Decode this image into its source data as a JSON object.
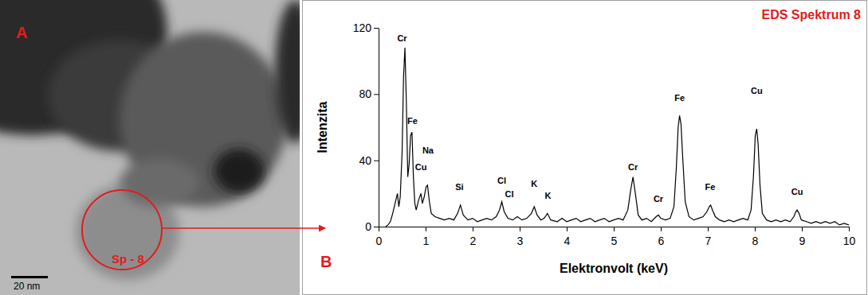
{
  "image": {
    "panel": "A",
    "region": "Sp - 8",
    "scale_bar": "20 nm"
  },
  "chart_data": {
    "type": "line",
    "title": "EDS Spektrum 8",
    "panel": "B",
    "x_label": "Elektronvolt (keV)",
    "y_label": "Intenzita",
    "xlim": [
      0,
      10
    ],
    "xticks": [
      0,
      1,
      2,
      3,
      4,
      5,
      6,
      7,
      8,
      9,
      10
    ],
    "ylim": [
      0,
      120
    ],
    "yticks": [
      0,
      40,
      80,
      120
    ],
    "color": "#000000",
    "x": [
      0.15,
      0.2,
      0.25,
      0.3,
      0.35,
      0.4,
      0.43,
      0.46,
      0.5,
      0.53,
      0.56,
      0.59,
      0.62,
      0.65,
      0.68,
      0.71,
      0.74,
      0.77,
      0.8,
      0.85,
      0.9,
      0.93,
      0.97,
      1.01,
      1.04,
      1.08,
      1.12,
      1.2,
      1.3,
      1.4,
      1.5,
      1.6,
      1.68,
      1.74,
      1.8,
      1.9,
      2.0,
      2.1,
      2.2,
      2.3,
      2.4,
      2.5,
      2.57,
      2.62,
      2.67,
      2.75,
      2.85,
      2.95,
      3.05,
      3.15,
      3.25,
      3.31,
      3.37,
      3.45,
      3.52,
      3.59,
      3.66,
      3.8,
      3.9,
      4.0,
      4.1,
      4.2,
      4.3,
      4.4,
      4.5,
      4.6,
      4.7,
      4.8,
      4.9,
      5.0,
      5.1,
      5.2,
      5.3,
      5.36,
      5.41,
      5.46,
      5.52,
      5.6,
      5.7,
      5.8,
      5.9,
      5.95,
      6.0,
      6.1,
      6.2,
      6.28,
      6.33,
      6.37,
      6.4,
      6.43,
      6.47,
      6.52,
      6.6,
      6.7,
      6.8,
      6.9,
      6.98,
      7.03,
      7.06,
      7.1,
      7.16,
      7.25,
      7.35,
      7.45,
      7.55,
      7.65,
      7.75,
      7.85,
      7.92,
      7.97,
      8.01,
      8.04,
      8.07,
      8.11,
      8.16,
      8.25,
      8.35,
      8.45,
      8.55,
      8.65,
      8.75,
      8.83,
      8.87,
      8.9,
      8.94,
      8.99,
      9.1,
      9.2,
      9.3,
      9.4,
      9.5,
      9.6,
      9.7,
      9.8,
      9.9,
      10.0
    ],
    "values": [
      0,
      1,
      3,
      8,
      14,
      20,
      12,
      18,
      45,
      90,
      108,
      75,
      30,
      38,
      55,
      57,
      30,
      14,
      10,
      16,
      20,
      14,
      18,
      24,
      25,
      15,
      8,
      6,
      5,
      4,
      5,
      4,
      8,
      13,
      7,
      4,
      5,
      3,
      4,
      5,
      4,
      6,
      10,
      15,
      9,
      5,
      4,
      6,
      4,
      5,
      8,
      12,
      7,
      4,
      5,
      8,
      4,
      3,
      5,
      3,
      4,
      5,
      3,
      4,
      5,
      3,
      4,
      5,
      3,
      4,
      5,
      4,
      10,
      22,
      30,
      20,
      7,
      4,
      5,
      3,
      6,
      7,
      5,
      4,
      5,
      12,
      35,
      60,
      67,
      62,
      40,
      15,
      6,
      4,
      5,
      6,
      9,
      12,
      13,
      10,
      6,
      4,
      3,
      4,
      3,
      4,
      5,
      4,
      10,
      30,
      55,
      59,
      50,
      25,
      8,
      4,
      3,
      4,
      3,
      4,
      3,
      6,
      9,
      10,
      8,
      4,
      3,
      2,
      3,
      2,
      3,
      2,
      3,
      1,
      2,
      1
    ],
    "annotations": [
      {
        "text": "Cr",
        "x": 0.5,
        "y": 112
      },
      {
        "text": "Fe",
        "x": 0.72,
        "y": 62
      },
      {
        "text": "Na",
        "x": 1.05,
        "y": 44
      },
      {
        "text": "Cu",
        "x": 0.9,
        "y": 34
      },
      {
        "text": "Si",
        "x": 1.72,
        "y": 22
      },
      {
        "text": "Cl",
        "x": 2.62,
        "y": 26
      },
      {
        "text": "Cl",
        "x": 2.78,
        "y": 18
      },
      {
        "text": "K",
        "x": 3.31,
        "y": 24
      },
      {
        "text": "K",
        "x": 3.6,
        "y": 17
      },
      {
        "text": "Cr",
        "x": 5.41,
        "y": 34
      },
      {
        "text": "Cr",
        "x": 5.95,
        "y": 15
      },
      {
        "text": "Fe",
        "x": 6.4,
        "y": 76
      },
      {
        "text": "Fe",
        "x": 7.05,
        "y": 22
      },
      {
        "text": "Cu",
        "x": 8.04,
        "y": 80
      },
      {
        "text": "Cu",
        "x": 8.9,
        "y": 19
      }
    ]
  }
}
